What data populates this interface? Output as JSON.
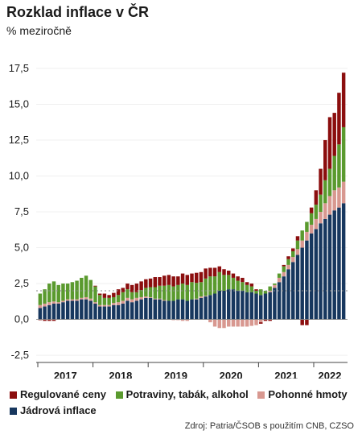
{
  "header": {
    "title": "Rozklad inflace v ČR",
    "subtitle": "% meziročně"
  },
  "source": "Zdroj: Patria/ČSOB s použitím CNB, CZSO",
  "chart_data": {
    "type": "bar",
    "stacked": true,
    "title": "Rozklad inflace v ČR",
    "ylabel": "% meziročně",
    "ylim": [
      -3,
      18
    ],
    "yticks": [
      -2.5,
      0.0,
      2.5,
      5.0,
      7.5,
      10.0,
      12.5,
      15.0,
      17.5
    ],
    "ytick_labels": [
      "-2,5",
      "0,0",
      "2,5",
      "5,0",
      "7,5",
      "10,0",
      "12,5",
      "15,0",
      "17,5"
    ],
    "years": [
      "2017",
      "2018",
      "2019",
      "2020",
      "2021",
      "2022"
    ],
    "reference_line": {
      "value": 2.0,
      "style": "dotted"
    },
    "colors": {
      "regulovane": "#8b0e0e",
      "potraviny": "#5a9a2e",
      "pohonne": "#d89890",
      "jadrova": "#17375e",
      "grid": "#aaaaaa"
    },
    "months_per_year": [
      12,
      12,
      12,
      12,
      12,
      7
    ],
    "series": [
      {
        "name": "Jádrová inflace",
        "key": "jadrova",
        "values": [
          0.8,
          0.9,
          1.0,
          1.1,
          1.1,
          1.2,
          1.3,
          1.3,
          1.3,
          1.4,
          1.4,
          1.3,
          1.1,
          0.9,
          0.9,
          0.9,
          1.0,
          1.0,
          1.1,
          1.3,
          1.2,
          1.3,
          1.4,
          1.5,
          1.5,
          1.4,
          1.4,
          1.3,
          1.3,
          1.3,
          1.4,
          1.4,
          1.3,
          1.4,
          1.4,
          1.5,
          1.6,
          1.7,
          1.8,
          2.0,
          2.0,
          2.1,
          2.1,
          2.0,
          2.0,
          1.9,
          1.9,
          1.8,
          1.7,
          1.8,
          1.9,
          2.2,
          2.6,
          3.0,
          3.5,
          4.0,
          4.5,
          5.0,
          5.5,
          6.0,
          6.3,
          6.7,
          7.0,
          7.3,
          7.6,
          7.8,
          8.1
        ]
      },
      {
        "name": "Pohonné hmoty",
        "key": "pohonne",
        "values": [
          0.2,
          0.2,
          0.2,
          0.15,
          0.1,
          0.1,
          0.1,
          0.1,
          0.1,
          0.1,
          0.15,
          0.15,
          0.1,
          0.1,
          0.1,
          0.1,
          0.15,
          0.2,
          0.2,
          0.2,
          0.2,
          0.2,
          0.15,
          0.1,
          0.05,
          0.05,
          0.05,
          0.05,
          0.0,
          -0.05,
          -0.05,
          -0.1,
          -0.1,
          0.0,
          0.05,
          0.1,
          0.05,
          -0.2,
          -0.5,
          -0.6,
          -0.6,
          -0.5,
          -0.5,
          -0.5,
          -0.5,
          -0.5,
          -0.45,
          -0.4,
          -0.2,
          0.0,
          0.1,
          0.2,
          0.3,
          0.3,
          0.3,
          0.35,
          0.4,
          0.5,
          0.6,
          0.6,
          0.7,
          0.8,
          1.1,
          1.3,
          1.4,
          1.4,
          1.5
        ]
      },
      {
        "name": "Potraviny, tabák, alkohol",
        "key": "potraviny",
        "values": [
          0.8,
          1.0,
          1.3,
          1.4,
          1.2,
          1.2,
          1.1,
          1.2,
          1.3,
          1.4,
          1.5,
          1.3,
          1.1,
          0.7,
          0.5,
          0.5,
          0.4,
          0.5,
          0.6,
          0.6,
          0.5,
          0.4,
          0.5,
          0.6,
          0.7,
          0.8,
          0.9,
          1.0,
          1.1,
          1.0,
          1.0,
          1.1,
          1.1,
          1.2,
          1.1,
          1.0,
          1.2,
          1.3,
          1.2,
          1.3,
          1.1,
          1.0,
          0.8,
          0.7,
          0.6,
          0.5,
          0.4,
          0.2,
          0.4,
          0.2,
          0.3,
          0.1,
          0.3,
          0.4,
          0.4,
          0.4,
          0.6,
          0.7,
          0.7,
          0.8,
          1.0,
          1.2,
          1.6,
          1.9,
          2.4,
          3.0,
          3.8
        ]
      },
      {
        "name": "Regulované ceny",
        "key": "regulovane",
        "values": [
          -0.05,
          -0.1,
          -0.1,
          -0.1,
          0.0,
          0.0,
          0.0,
          0.0,
          0.0,
          0.0,
          0.0,
          0.0,
          0.05,
          0.1,
          0.3,
          0.2,
          0.3,
          0.4,
          0.3,
          0.4,
          0.5,
          0.6,
          0.6,
          0.6,
          0.6,
          0.7,
          0.6,
          0.7,
          0.7,
          0.7,
          0.6,
          0.7,
          0.7,
          0.6,
          0.7,
          0.7,
          0.7,
          0.6,
          0.6,
          0.4,
          0.4,
          0.3,
          0.3,
          0.3,
          0.3,
          0.2,
          0.2,
          0.1,
          -0.1,
          -0.1,
          -0.1,
          0.0,
          0.0,
          0.1,
          0.2,
          0.2,
          0.3,
          -0.4,
          -0.4,
          0.4,
          1.0,
          1.8,
          2.8,
          3.6,
          3.0,
          3.6,
          3.8
        ]
      }
    ]
  },
  "legend": [
    {
      "label": "Regulované ceny",
      "key": "regulovane"
    },
    {
      "label": "Potraviny, tabák, alkohol",
      "key": "potraviny"
    },
    {
      "label": "Pohonné hmoty",
      "key": "pohonne"
    },
    {
      "label": "Jádrová inflace",
      "key": "jadrova"
    }
  ]
}
